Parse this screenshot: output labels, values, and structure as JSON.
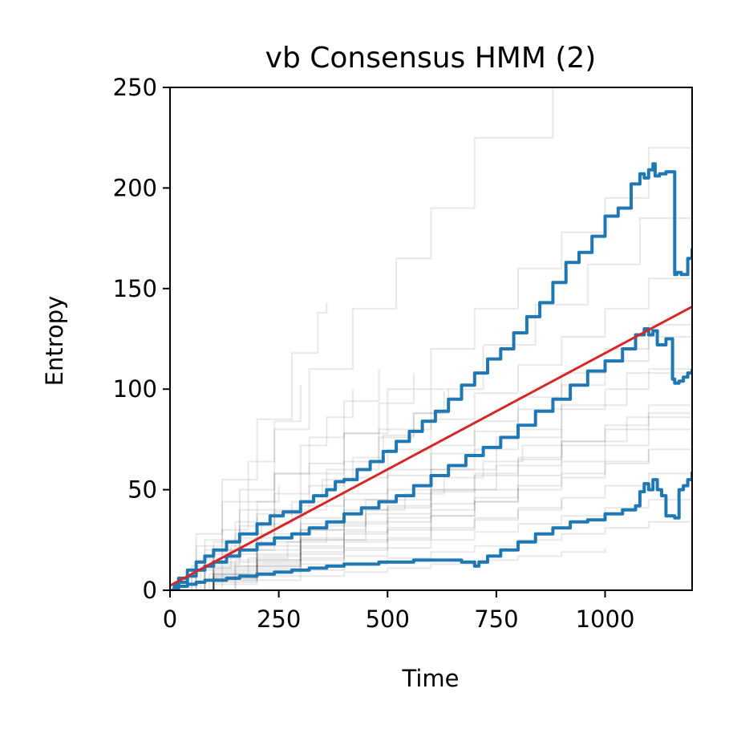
{
  "chart_data": {
    "type": "line",
    "title": "vb Consensus HMM (2)",
    "xlabel": "Time",
    "ylabel": "Entropy",
    "xlim": [
      0,
      1200
    ],
    "ylim": [
      0,
      250
    ],
    "xticks": [
      0,
      250,
      500,
      750,
      1000
    ],
    "xtick_labels": [
      "0",
      "250",
      "500",
      "750",
      "1000"
    ],
    "yticks": [
      0,
      50,
      100,
      150,
      200,
      250
    ],
    "ytick_labels": [
      "0",
      "50",
      "100",
      "150",
      "200",
      "250"
    ],
    "grid": false,
    "legend": "none",
    "colors": {
      "background_traces": "#000000",
      "quantiles": "#1f77b4",
      "mean": "#d62728"
    },
    "background_traces": [
      {
        "x": [
          0,
          60,
          120,
          200,
          280,
          340,
          360
        ],
        "y": [
          0,
          28,
          55,
          85,
          118,
          138,
          143
        ]
      },
      {
        "x": [
          0,
          80,
          160,
          240,
          320,
          420,
          520,
          600,
          700,
          880
        ],
        "y": [
          0,
          25,
          50,
          80,
          110,
          140,
          165,
          190,
          225,
          250
        ]
      },
      {
        "x": [
          0,
          100,
          200,
          300,
          400,
          500,
          600,
          700,
          800,
          900,
          1000,
          1100,
          1200
        ],
        "y": [
          0,
          18,
          38,
          58,
          78,
          100,
          120,
          140,
          160,
          178,
          195,
          220,
          246
        ]
      },
      {
        "x": [
          0,
          120,
          240,
          360,
          480,
          600,
          720,
          840,
          960,
          1080,
          1200
        ],
        "y": [
          0,
          20,
          40,
          60,
          80,
          100,
          122,
          142,
          162,
          185,
          210
        ]
      },
      {
        "x": [
          0,
          100,
          200,
          300,
          400,
          500,
          600,
          700,
          800,
          900,
          1000,
          1100,
          1200
        ],
        "y": [
          0,
          14,
          28,
          42,
          56,
          70,
          85,
          98,
          112,
          126,
          140,
          155,
          168
        ]
      },
      {
        "x": [
          0,
          100,
          200,
          300,
          400,
          500,
          600,
          700,
          800,
          900,
          1000,
          1100,
          1200
        ],
        "y": [
          0,
          12,
          24,
          36,
          48,
          60,
          72,
          84,
          96,
          108,
          120,
          132,
          140
        ]
      },
      {
        "x": [
          0,
          100,
          200,
          300,
          400,
          500,
          600,
          700,
          800,
          900,
          1000,
          1100,
          1200
        ],
        "y": [
          0,
          10,
          20,
          30,
          40,
          50,
          60,
          70,
          80,
          90,
          100,
          110,
          120
        ]
      },
      {
        "x": [
          0,
          100,
          200,
          300,
          400,
          500,
          600,
          700,
          800,
          900,
          1000,
          1100,
          1200
        ],
        "y": [
          0,
          9,
          18,
          26,
          34,
          42,
          50,
          58,
          66,
          74,
          82,
          92,
          100
        ]
      },
      {
        "x": [
          0,
          100,
          200,
          300,
          400,
          500,
          600,
          700,
          800,
          900,
          1000,
          1100,
          1200
        ],
        "y": [
          0,
          8,
          15,
          22,
          29,
          36,
          43,
          50,
          57,
          64,
          72,
          80,
          88
        ]
      },
      {
        "x": [
          0,
          100,
          200,
          300,
          400,
          500,
          600,
          700,
          800,
          900,
          1000,
          1100,
          1200
        ],
        "y": [
          0,
          7,
          13,
          19,
          25,
          31,
          37,
          44,
          50,
          56,
          63,
          70,
          77
        ]
      },
      {
        "x": [
          0,
          100,
          200,
          300,
          400,
          500,
          600,
          700,
          800,
          900,
          1000,
          1100,
          1200
        ],
        "y": [
          0,
          6,
          11,
          16,
          21,
          26,
          31,
          36,
          41,
          46,
          52,
          58,
          64
        ]
      },
      {
        "x": [
          0,
          100,
          200,
          300,
          400,
          500,
          600,
          700,
          800,
          900,
          1000,
          1100,
          1200
        ],
        "y": [
          0,
          5,
          9,
          13,
          17,
          21,
          25,
          29,
          33,
          37,
          41,
          45,
          50
        ]
      },
      {
        "x": [
          0,
          100,
          200,
          300,
          400,
          500,
          600,
          700,
          800,
          900,
          1000,
          1100,
          1200
        ],
        "y": [
          0,
          4,
          7,
          10,
          13,
          16,
          19,
          22,
          25,
          28,
          31,
          34,
          37
        ]
      },
      {
        "x": [
          0,
          100,
          200,
          300,
          400,
          500,
          600,
          700,
          800,
          900,
          1000
        ],
        "y": [
          0,
          3,
          5,
          7,
          9,
          11,
          13,
          15,
          17,
          19,
          21
        ]
      },
      {
        "x": [
          0,
          80,
          160,
          240,
          320,
          400,
          480,
          560
        ],
        "y": [
          0,
          16,
          32,
          48,
          63,
          78,
          93,
          108
        ]
      },
      {
        "x": [
          0,
          80,
          160,
          240,
          320,
          400,
          480,
          560,
          640
        ],
        "y": [
          0,
          13,
          26,
          39,
          52,
          64,
          76,
          88,
          100
        ]
      },
      {
        "x": [
          0,
          80,
          160,
          240,
          320,
          400,
          480
        ],
        "y": [
          0,
          20,
          40,
          58,
          76,
          94,
          110
        ]
      },
      {
        "x": [
          0,
          60,
          120,
          180,
          240,
          300,
          360,
          420
        ],
        "y": [
          0,
          15,
          30,
          44,
          58,
          72,
          86,
          100
        ]
      },
      {
        "x": [
          0,
          60,
          120,
          180,
          240,
          300
        ],
        "y": [
          0,
          22,
          44,
          64,
          84,
          102
        ]
      },
      {
        "x": [
          0,
          70,
          140,
          210,
          280,
          350,
          420,
          490,
          560,
          630
        ],
        "y": [
          0,
          11,
          22,
          33,
          44,
          55,
          66,
          77,
          88,
          99
        ]
      },
      {
        "x": [
          0,
          90,
          180,
          270,
          360,
          450,
          540,
          630,
          720,
          810,
          900
        ],
        "y": [
          0,
          8,
          16,
          24,
          32,
          40,
          48,
          56,
          64,
          72,
          80
        ]
      },
      {
        "x": [
          0,
          100,
          200,
          300,
          400,
          500,
          600,
          700,
          800
        ],
        "y": [
          0,
          6,
          12,
          18,
          24,
          30,
          37,
          44,
          51
        ]
      },
      {
        "x": [
          0,
          50,
          100,
          150,
          200,
          250
        ],
        "y": [
          0,
          12,
          24,
          34,
          44,
          52
        ]
      },
      {
        "x": [
          0,
          50,
          100,
          150,
          200
        ],
        "y": [
          0,
          10,
          19,
          28,
          36
        ]
      },
      {
        "x": [
          0,
          100,
          200,
          300,
          400,
          500,
          600,
          700,
          800,
          900,
          1000,
          1100,
          1200
        ],
        "y": [
          0,
          11,
          22,
          33,
          45,
          57,
          68,
          79,
          90,
          102,
          114,
          126,
          135
        ]
      },
      {
        "x": [
          0,
          100,
          200,
          300,
          400,
          500,
          600,
          700,
          800,
          900,
          1000,
          1100,
          1200
        ],
        "y": [
          0,
          8,
          17,
          25,
          33,
          41,
          49,
          57,
          65,
          72,
          80,
          88,
          96
        ]
      },
      {
        "x": [
          0,
          100,
          200,
          300,
          400,
          500,
          600,
          700,
          800,
          900,
          1000,
          1100
        ],
        "y": [
          0,
          7,
          14,
          21,
          28,
          34,
          40,
          46,
          52,
          58,
          64,
          70
        ]
      },
      {
        "x": [
          0,
          100,
          200,
          300,
          400,
          500,
          600,
          700,
          800,
          900
        ],
        "y": [
          0,
          5,
          10,
          15,
          20,
          25,
          30,
          35,
          40,
          45
        ]
      },
      {
        "x": [
          0,
          150,
          300,
          450,
          600,
          750,
          900,
          1050,
          1200
        ],
        "y": [
          0,
          15,
          30,
          45,
          60,
          76,
          92,
          108,
          124
        ]
      },
      {
        "x": [
          0,
          150,
          300,
          450,
          600,
          750,
          900,
          1050,
          1200
        ],
        "y": [
          0,
          12,
          25,
          38,
          50,
          62,
          74,
          86,
          98
        ]
      }
    ],
    "series": [
      {
        "x": [
          0,
          10,
          20,
          40,
          60,
          80,
          100,
          130,
          160,
          200,
          230,
          260,
          300,
          330,
          360,
          380,
          400,
          430,
          460,
          490,
          520,
          550,
          580,
          610,
          640,
          670,
          700,
          730,
          760,
          790,
          820,
          850,
          880,
          910,
          940,
          970,
          1000,
          1030,
          1060,
          1080,
          1090,
          1100,
          1110,
          1115,
          1125,
          1140,
          1160,
          1165,
          1175,
          1190,
          1200
        ],
        "y": [
          0,
          3,
          6,
          10,
          14,
          17,
          20,
          24,
          28,
          33,
          37,
          39,
          44,
          47,
          50,
          54,
          55,
          60,
          64,
          69,
          74,
          79,
          84,
          89,
          95,
          102,
          108,
          115,
          120,
          128,
          136,
          143,
          153,
          163,
          168,
          176,
          186,
          190,
          202,
          207,
          205,
          209,
          212,
          206,
          207,
          208,
          157,
          158,
          157,
          165,
          170
        ]
      },
      {
        "x": [
          0,
          10,
          20,
          40,
          60,
          80,
          100,
          130,
          160,
          200,
          240,
          280,
          320,
          360,
          400,
          440,
          480,
          520,
          560,
          600,
          640,
          680,
          720,
          760,
          800,
          840,
          880,
          920,
          960,
          1000,
          1040,
          1070,
          1090,
          1100,
          1110,
          1120,
          1140,
          1155,
          1160,
          1170,
          1180,
          1190,
          1200
        ],
        "y": [
          0,
          2,
          4,
          7,
          10,
          12,
          14,
          17,
          20,
          23,
          26,
          28,
          31,
          34,
          38,
          41,
          44,
          47,
          52,
          57,
          62,
          67,
          71,
          76,
          82,
          89,
          95,
          102,
          109,
          114,
          120,
          127,
          130,
          127,
          129,
          122,
          125,
          105,
          103,
          104,
          106,
          108,
          110
        ]
      },
      {
        "x": [
          0,
          10,
          20,
          40,
          60,
          80,
          100,
          130,
          160,
          200,
          240,
          280,
          320,
          360,
          400,
          440,
          480,
          520,
          560,
          600,
          640,
          670,
          700,
          710,
          730,
          760,
          800,
          840,
          880,
          920,
          960,
          1000,
          1040,
          1070,
          1080,
          1090,
          1100,
          1110,
          1120,
          1130,
          1140,
          1160,
          1170,
          1180,
          1190,
          1200
        ],
        "y": [
          0,
          1,
          2,
          3,
          4,
          5,
          5,
          6,
          7,
          8,
          9,
          10,
          11,
          12,
          13,
          13,
          14,
          14,
          15,
          15,
          15,
          14,
          12,
          14,
          17,
          20,
          24,
          28,
          31,
          34,
          35,
          38,
          40,
          42,
          49,
          53,
          50,
          55,
          50,
          47,
          37,
          36,
          50,
          52,
          55,
          59
        ]
      },
      {
        "x": [
          0,
          1200
        ],
        "y": [
          2.3,
          141
        ]
      }
    ]
  }
}
